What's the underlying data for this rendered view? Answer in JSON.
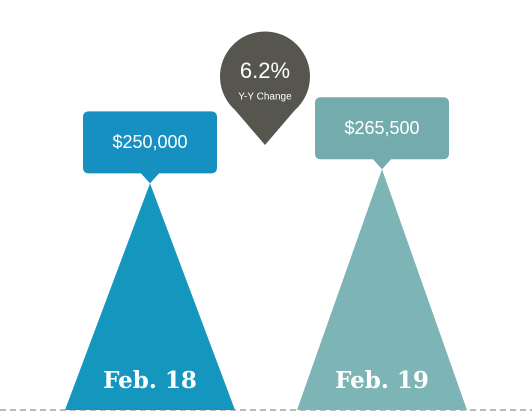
{
  "chart_data": {
    "type": "triangle",
    "categories": [
      "Feb. 18",
      "Feb. 19"
    ],
    "series": [
      {
        "values": [
          250000,
          265500
        ],
        "value_labels": [
          "$250,000",
          "$265,500"
        ],
        "colors": [
          "#1596bf",
          "#7db4b6"
        ],
        "label_colors": [
          "#1690c0",
          "#74acae"
        ]
      }
    ],
    "ylim": [
      0,
      300000
    ],
    "annotation": {
      "value": "6.2%",
      "label": "Y-Y Change",
      "color": "#56564f"
    }
  }
}
